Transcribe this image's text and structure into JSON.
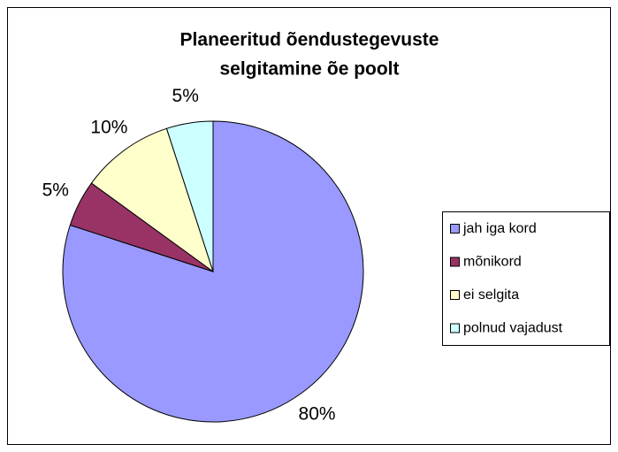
{
  "chart_data": {
    "type": "pie",
    "title": [
      "Planeeritud õendustegevuste",
      "selgitamine õe poolt"
    ],
    "categories": [
      "jah iga kord",
      "mõnikord",
      "ei selgita",
      "polnud vajadust"
    ],
    "values": [
      80,
      5,
      10,
      5
    ],
    "value_labels": [
      "80%",
      "5%",
      "10%",
      "5%"
    ],
    "colors": [
      "#9999ff",
      "#993366",
      "#ffffcc",
      "#ccffff"
    ],
    "legend": "right"
  }
}
